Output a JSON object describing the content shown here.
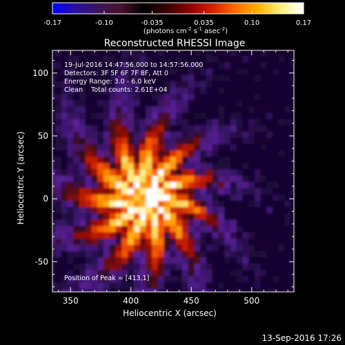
{
  "colorbar": {
    "ticks": [
      "-0.17",
      "-0.10",
      "-0.035",
      "0.035",
      "0.10",
      "0.17"
    ],
    "tick_values": [
      -0.17,
      -0.1,
      -0.035,
      0.035,
      0.1,
      0.17
    ],
    "range": [
      -0.17,
      0.17
    ],
    "unit_prefix": "(photons cm",
    "unit_exp1": "-2",
    "unit_mid1": " s",
    "unit_exp2": "-1",
    "unit_mid2": " asec",
    "unit_exp3": "-2",
    "unit_suffix": ")",
    "colors": [
      "#0000ff",
      "#2a10a0",
      "#3a1558",
      "#4a1030",
      "#000000",
      "#3a0000",
      "#8b0000",
      "#d42000",
      "#ff6a00",
      "#ffb000",
      "#fff080",
      "#ffffff"
    ]
  },
  "chart_data": {
    "type": "heatmap",
    "title": "Reconstructed RHESSI Image",
    "xlabel": "Heliocentric X (arcsec)",
    "ylabel": "Heliocentric Y (arcsec)",
    "xlim": [
      335,
      535
    ],
    "ylim": [
      -74,
      118
    ],
    "x_ticks": [
      350,
      400,
      450,
      500
    ],
    "y_ticks": [
      -50,
      0,
      50,
      100
    ],
    "x_tick_labels": [
      "350",
      "400",
      "450",
      "500"
    ],
    "y_tick_labels": [
      "-50",
      "0",
      "50",
      "100"
    ],
    "peak": [
      413,
      1
    ],
    "annotations": {
      "time_range": "19-Jul-2016 14:47:56.000 to 14:57:56.000",
      "detectors": "Detectors: 3F 5F 6F 7F 8F, Att 0",
      "energy": "Energy Range: 3.0 - 6.0 keV",
      "clean": "Clean    Total counts: 2.61E+04",
      "peak_label": "Position of Peak = [413,1]"
    }
  },
  "footer": {
    "date": "13-Sep-2016 17:26"
  }
}
